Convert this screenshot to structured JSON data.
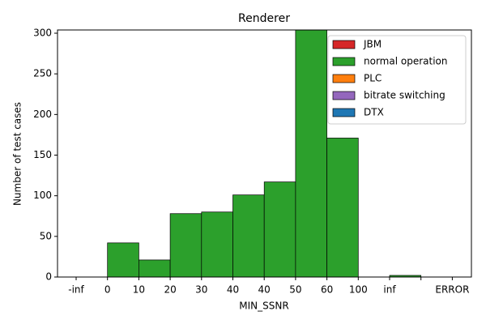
{
  "chart_data": {
    "type": "histogram",
    "title": "Renderer",
    "xlabel": "MIN_SSNR",
    "ylabel": "Number of test cases",
    "bins": [
      "-inf",
      "0",
      "10",
      "20",
      "30",
      "40",
      "40",
      "50",
      "60",
      "100",
      "inf",
      null,
      "ERROR"
    ],
    "series": [
      {
        "name": "JBM",
        "color": "#d62728",
        "values": [
          0,
          0,
          0,
          0,
          0,
          0,
          0,
          0,
          0,
          0,
          0,
          0
        ]
      },
      {
        "name": "normal operation",
        "color": "#2ca02c",
        "values": [
          0,
          42,
          21,
          78,
          80,
          101,
          117,
          304,
          171,
          0,
          2,
          0
        ]
      },
      {
        "name": "PLC",
        "color": "#ff7f0e",
        "values": [
          0,
          0,
          0,
          0,
          0,
          0,
          0,
          0,
          0,
          0,
          0,
          0
        ]
      },
      {
        "name": "bitrate switching",
        "color": "#9467bd",
        "values": [
          0,
          0,
          0,
          0,
          0,
          0,
          0,
          0,
          0,
          0,
          0,
          0
        ]
      },
      {
        "name": "DTX",
        "color": "#1f77b4",
        "values": [
          0,
          0,
          0,
          0,
          0,
          0,
          0,
          0,
          0,
          0,
          0,
          0
        ]
      }
    ],
    "stacked": true,
    "ylim": [
      0,
      304
    ],
    "yticks": [
      0,
      50,
      100,
      150,
      200,
      250,
      300
    ],
    "legend": "upper right"
  }
}
